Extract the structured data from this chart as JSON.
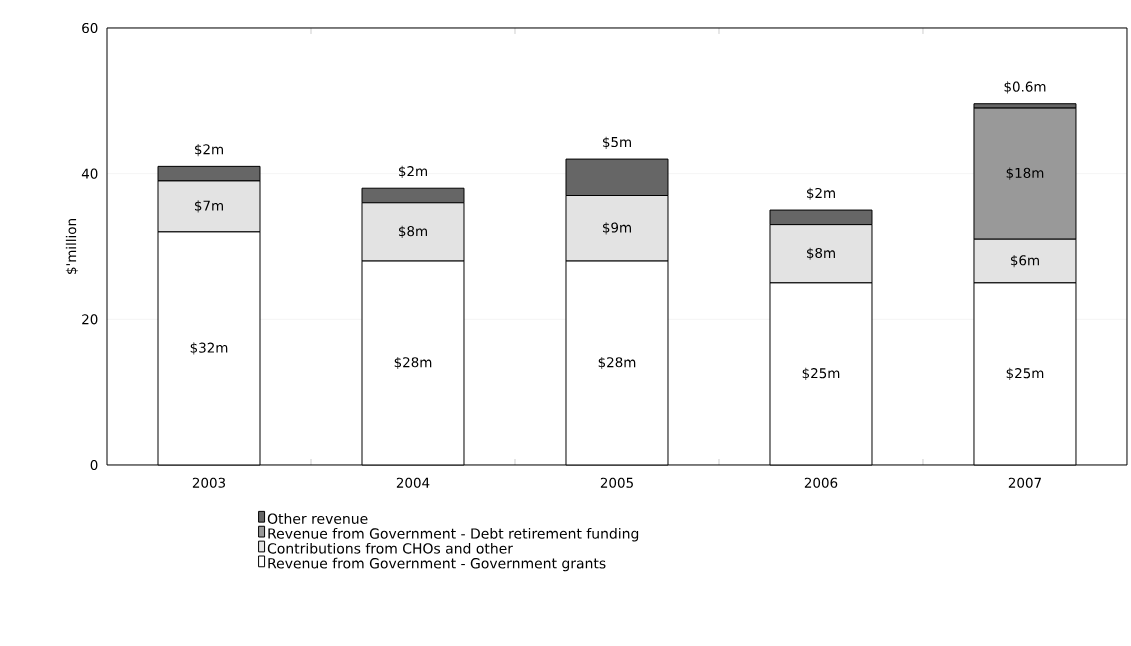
{
  "chart_data": {
    "type": "bar",
    "stacked": true,
    "ylabel": "$'million",
    "categories": [
      "2003",
      "2004",
      "2005",
      "2006",
      "2007"
    ],
    "series": [
      {
        "name": "Revenue from Government - Government grants",
        "color": "#ffffff",
        "values": [
          32,
          28,
          28,
          25,
          25
        ],
        "value_labels": [
          "$32m",
          "$28m",
          "$28m",
          "$25m",
          "$25m"
        ]
      },
      {
        "name": "Contributions from CHOs and other",
        "color": "#e3e3e3",
        "values": [
          7,
          8,
          9,
          8,
          6
        ],
        "value_labels": [
          "$7m",
          "$8m",
          "$9m",
          "$8m",
          "$6m"
        ]
      },
      {
        "name": "Revenue from Government - Debt retirement funding",
        "color": "#999999",
        "values": [
          null,
          null,
          null,
          null,
          18
        ],
        "value_labels": [
          null,
          null,
          null,
          null,
          "$18m"
        ]
      },
      {
        "name": "Other revenue",
        "color": "#666666",
        "values": [
          2,
          2,
          5,
          2,
          0.6
        ],
        "value_labels": [
          "$2m",
          "$2m",
          "$5m",
          "$2m",
          "$0.6m"
        ]
      }
    ],
    "ylim": [
      0,
      60
    ],
    "yticks": [
      0,
      20,
      40,
      60
    ],
    "grid": "y",
    "legend": "bottom"
  }
}
